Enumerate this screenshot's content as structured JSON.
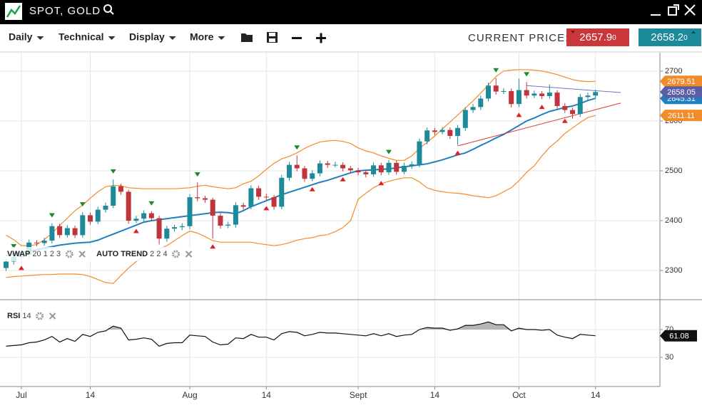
{
  "header": {
    "symbol": "SPOT, GOLD"
  },
  "toolbar": {
    "menus": [
      "Daily",
      "Technical",
      "Display",
      "More"
    ],
    "price_label": "CURRENT PRICE:",
    "bid": {
      "main": "2657.9",
      "pip": "0"
    },
    "ask": {
      "main": "2658.2",
      "pip": "0"
    }
  },
  "chart_data": [
    {
      "type": "candlestick",
      "categories": [
        null,
        null,
        "Jul",
        null,
        null,
        null,
        null,
        null,
        null,
        null,
        null,
        "14",
        null,
        null,
        null,
        null,
        null,
        null,
        null,
        null,
        null,
        null,
        null,
        null,
        "Aug",
        null,
        null,
        null,
        null,
        null,
        null,
        null,
        null,
        null,
        "14",
        null,
        null,
        null,
        null,
        null,
        null,
        null,
        null,
        null,
        null,
        null,
        "Sept",
        null,
        null,
        null,
        null,
        null,
        null,
        null,
        null,
        null,
        "14",
        null,
        null,
        null,
        null,
        null,
        null,
        null,
        null,
        null,
        null,
        "Oct",
        null,
        null,
        null,
        null,
        null,
        null,
        null,
        null,
        null,
        "14"
      ],
      "open": [
        2305,
        2318,
        2327,
        2331,
        2356,
        2355,
        2360,
        2389,
        2371,
        2385,
        2371,
        2411,
        2398,
        2422,
        2430,
        2469,
        2458,
        2400,
        2404,
        2415,
        2405,
        2364,
        2384,
        2387,
        2389,
        2447,
        2445,
        2442,
        2410,
        2390,
        2392,
        2431,
        2428,
        2465,
        2448,
        2447,
        2428,
        2486,
        2512,
        2505,
        2484,
        2495,
        2515,
        2512,
        2512,
        2505,
        2501,
        2497,
        2493,
        2511,
        2497,
        2516,
        2498,
        2510,
        2513,
        2559,
        2581,
        2578,
        2582,
        2570,
        2586,
        2622,
        2628,
        2645,
        2671,
        2659,
        2660,
        2634,
        2662,
        2651,
        2655,
        2650,
        2657,
        2630,
        2622,
        2614,
        2648,
        2651
      ],
      "high": [
        2324,
        2333,
        2337,
        2362,
        2361,
        2366,
        2395,
        2394,
        2391,
        2390,
        2417,
        2416,
        2428,
        2436,
        2483,
        2474,
        2462,
        2410,
        2421,
        2419,
        2410,
        2390,
        2392,
        2395,
        2453,
        2477,
        2450,
        2446,
        2415,
        2398,
        2437,
        2436,
        2471,
        2470,
        2454,
        2452,
        2492,
        2518,
        2531,
        2510,
        2501,
        2521,
        2520,
        2518,
        2517,
        2510,
        2506,
        2502,
        2517,
        2516,
        2522,
        2521,
        2516,
        2519,
        2565,
        2587,
        2586,
        2588,
        2587,
        2592,
        2628,
        2634,
        2651,
        2677,
        2686,
        2666,
        2665,
        2685,
        2678,
        2661,
        2660,
        2673,
        2662,
        2636,
        2627,
        2654,
        2657,
        2663
      ],
      "low": [
        2299,
        2312,
        2321,
        2325,
        2349,
        2350,
        2354,
        2365,
        2366,
        2365,
        2366,
        2392,
        2393,
        2416,
        2425,
        2452,
        2394,
        2395,
        2398,
        2399,
        2352,
        2358,
        2378,
        2381,
        2383,
        2439,
        2436,
        2364,
        2384,
        2385,
        2386,
        2422,
        2423,
        2442,
        2441,
        2422,
        2423,
        2480,
        2499,
        2478,
        2479,
        2489,
        2506,
        2507,
        2499,
        2495,
        2491,
        2487,
        2488,
        2491,
        2492,
        2492,
        2493,
        2504,
        2507,
        2553,
        2572,
        2573,
        2564,
        2552,
        2580,
        2616,
        2622,
        2639,
        2653,
        2654,
        2627,
        2628,
        2645,
        2646,
        2644,
        2645,
        2624,
        2616,
        2605,
        2608,
        2642,
        2645
      ],
      "close": [
        2318,
        2327,
        2331,
        2356,
        2355,
        2360,
        2389,
        2371,
        2385,
        2371,
        2411,
        2398,
        2422,
        2430,
        2469,
        2458,
        2400,
        2404,
        2415,
        2405,
        2364,
        2384,
        2387,
        2389,
        2447,
        2445,
        2442,
        2410,
        2390,
        2392,
        2431,
        2428,
        2465,
        2448,
        2447,
        2428,
        2486,
        2512,
        2505,
        2484,
        2495,
        2515,
        2512,
        2512,
        2505,
        2501,
        2497,
        2493,
        2511,
        2497,
        2516,
        2498,
        2510,
        2513,
        2559,
        2581,
        2578,
        2582,
        2570,
        2586,
        2622,
        2628,
        2645,
        2671,
        2659,
        2660,
        2634,
        2662,
        2651,
        2655,
        2650,
        2657,
        2630,
        2622,
        2614,
        2648,
        2651,
        2658.05
      ],
      "up_color": "#1d8a99",
      "down_color": "#c0353c",
      "last_price_color": "#5b5ea6",
      "lines": [
        {
          "color": "#1f7fbf",
          "values": [
            2330,
            2333,
            2336,
            2339,
            2342,
            2345,
            2348,
            2351,
            2353,
            2355,
            2356,
            2357,
            2361,
            2367,
            2373,
            2379,
            2385,
            2391,
            2397,
            2400,
            2402,
            2404,
            2406,
            2408,
            2410,
            2412,
            2414,
            2416,
            2417,
            2416,
            2414,
            2420,
            2428,
            2434,
            2440,
            2446,
            2452,
            2457,
            2462,
            2467,
            2472,
            2477,
            2481,
            2486,
            2491,
            2496,
            2500,
            2501,
            2502,
            2503,
            2504,
            2506,
            2508,
            2510,
            2512,
            2514,
            2518,
            2522,
            2527,
            2532,
            2536,
            2543,
            2551,
            2558,
            2566,
            2573,
            2582,
            2591,
            2600,
            2606,
            2613,
            2619,
            2623,
            2627,
            2630,
            2635,
            2641,
            2645.31
          ]
        },
        {
          "color": "#f28c28",
          "values": [
            2371,
            2362,
            2350,
            2350,
            2352,
            2362,
            2375,
            2390,
            2405,
            2420,
            2431,
            2445,
            2458,
            2468,
            2471,
            2470,
            2466,
            2465,
            2464,
            2464,
            2464,
            2464,
            2464,
            2465,
            2466,
            2469,
            2471,
            2468,
            2466,
            2464,
            2466,
            2474,
            2479,
            2490,
            2503,
            2515,
            2524,
            2529,
            2536,
            2545,
            2552,
            2558,
            2560,
            2561,
            2559,
            2555,
            2546,
            2540,
            2536,
            2530,
            2525,
            2521,
            2521,
            2530,
            2545,
            2557,
            2570,
            2584,
            2598,
            2612,
            2626,
            2640,
            2656,
            2672,
            2689,
            2700,
            2702,
            2703,
            2703,
            2702,
            2700,
            2697,
            2693,
            2688,
            2683,
            2680,
            2679,
            2679.51
          ]
        },
        {
          "color": "#f28c28",
          "values": [
            2286,
            2288,
            2289,
            2290,
            2291,
            2292,
            2292,
            2293,
            2293,
            2293,
            2292,
            2288,
            2282,
            2276,
            2274,
            2290,
            2305,
            2318,
            2328,
            2336,
            2343,
            2350,
            2360,
            2370,
            2379,
            2375,
            2368,
            2360,
            2357,
            2357,
            2357,
            2357,
            2357,
            2354,
            2352,
            2350,
            2352,
            2356,
            2361,
            2364,
            2366,
            2370,
            2372,
            2378,
            2386,
            2400,
            2443,
            2455,
            2466,
            2474,
            2479,
            2483,
            2486,
            2486,
            2478,
            2466,
            2461,
            2458,
            2456,
            2455,
            2453,
            2450,
            2448,
            2446,
            2450,
            2458,
            2466,
            2480,
            2497,
            2510,
            2530,
            2547,
            2560,
            2575,
            2586,
            2597,
            2607,
            2611.11
          ]
        }
      ],
      "trend_lines": [
        {
          "color": "#6677cc",
          "x": [
            68,
            80.3
          ],
          "values": [
            2671,
            2657
          ]
        },
        {
          "color": "#e0393e",
          "x": [
            59,
            80.3
          ],
          "values": [
            2550,
            2636
          ]
        }
      ],
      "swing_highs": [
        1,
        6,
        10,
        14,
        19,
        25,
        38,
        50,
        64,
        68
      ],
      "swing_high_color": "#1a8a2a",
      "swing_lows": [
        2,
        17,
        27,
        34,
        40,
        44,
        49,
        59,
        67,
        70,
        73
      ],
      "swing_low_color": "#e02020",
      "indicators": [
        {
          "name": "VWAP",
          "params": "20 1 2 3"
        },
        {
          "name": "AUTO TREND",
          "params": "2 2 4"
        }
      ],
      "ylim": [
        2243,
        2737
      ],
      "yticks": [
        2300,
        2400,
        2500,
        2600,
        2700
      ],
      "grid": true
    },
    {
      "type": "line",
      "title": "RSI",
      "params": "14",
      "color": "#111111",
      "overbought": 70,
      "shade_color": "#b5b5b5",
      "values": [
        46,
        47,
        48,
        51,
        52,
        55,
        60,
        52,
        57,
        53,
        63,
        60,
        66,
        68,
        75,
        72,
        55,
        56,
        58,
        56,
        46,
        50,
        51,
        51,
        62,
        61,
        60,
        52,
        48,
        49,
        58,
        57,
        63,
        59,
        59,
        55,
        64,
        67,
        66,
        61,
        63,
        66,
        65,
        65,
        64,
        63,
        62,
        61,
        64,
        61,
        64,
        60,
        62,
        63,
        70,
        73,
        72,
        72,
        69,
        71,
        76,
        76,
        78,
        81,
        77,
        77,
        68,
        72,
        70,
        70,
        69,
        70,
        62,
        59,
        57,
        63,
        62,
        61.08
      ],
      "ylim": [
        -12,
        112
      ],
      "yticks": [
        30,
        70
      ],
      "grid": true
    }
  ]
}
